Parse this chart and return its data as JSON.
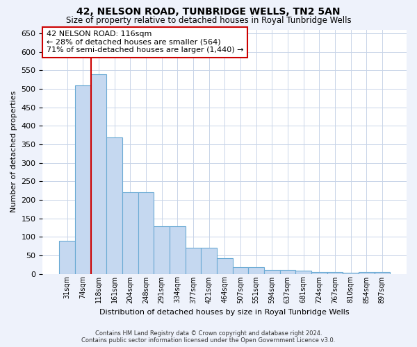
{
  "title": "42, NELSON ROAD, TUNBRIDGE WELLS, TN2 5AN",
  "subtitle": "Size of property relative to detached houses in Royal Tunbridge Wells",
  "xlabel": "Distribution of detached houses by size in Royal Tunbridge Wells",
  "ylabel": "Number of detached properties",
  "categories": [
    "31sqm",
    "74sqm",
    "118sqm",
    "161sqm",
    "204sqm",
    "248sqm",
    "291sqm",
    "334sqm",
    "377sqm",
    "421sqm",
    "464sqm",
    "507sqm",
    "551sqm",
    "594sqm",
    "637sqm",
    "681sqm",
    "724sqm",
    "767sqm",
    "810sqm",
    "854sqm",
    "897sqm"
  ],
  "values": [
    90,
    510,
    540,
    368,
    220,
    220,
    128,
    128,
    70,
    70,
    42,
    18,
    18,
    10,
    10,
    8,
    4,
    4,
    2,
    4,
    4
  ],
  "bar_color": "#c5d8f0",
  "bar_edge_color": "#6aaad4",
  "vline_x": 1.5,
  "vline_color": "#cc0000",
  "annotation_text": "42 NELSON ROAD: 116sqm\n← 28% of detached houses are smaller (564)\n71% of semi-detached houses are larger (1,440) →",
  "ylim": [
    0,
    660
  ],
  "yticks": [
    0,
    50,
    100,
    150,
    200,
    250,
    300,
    350,
    400,
    450,
    500,
    550,
    600,
    650
  ],
  "background_color": "#eef2fb",
  "plot_bg_color": "#ffffff",
  "grid_color": "#c8d4e8",
  "footer_line1": "Contains HM Land Registry data © Crown copyright and database right 2024.",
  "footer_line2": "Contains public sector information licensed under the Open Government Licence v3.0."
}
